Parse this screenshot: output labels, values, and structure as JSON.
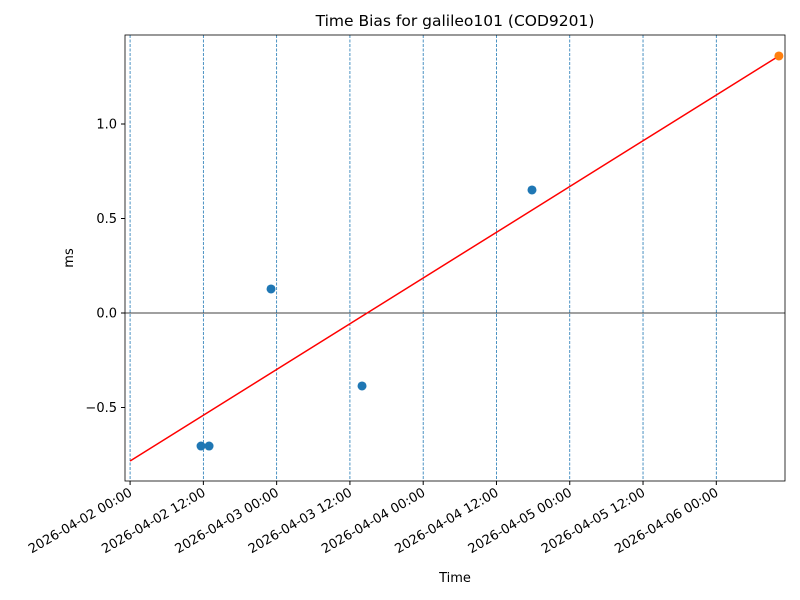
{
  "chart_data": {
    "type": "scatter",
    "title": "Time Bias for galileo101 (COD9201)",
    "x_label": "Time",
    "y_label": "ms",
    "xlim": [
      "2026-04-01 23:10",
      "2026-04-06 11:15"
    ],
    "xticks": [
      "2026-04-02 00:00",
      "2026-04-02 12:00",
      "2026-04-03 00:00",
      "2026-04-03 12:00",
      "2026-04-04 00:00",
      "2026-04-04 12:00",
      "2026-04-05 00:00",
      "2026-04-05 12:00",
      "2026-04-06 00:00"
    ],
    "ylim": [
      -0.889,
      1.471
    ],
    "yticks": [
      {
        "value": -0.5,
        "label": "−0.5"
      },
      {
        "value": 0,
        "label": "0.0"
      },
      0.5,
      {
        "value": 1,
        "label": "1.0"
      }
    ],
    "vertical_tick_lines": true,
    "vertical_line_color": "#1f77b4",
    "hline": {
      "value": 0,
      "color": "#000000"
    },
    "series": [
      {
        "type": "scatter",
        "color": "#1f77b4",
        "x": [
          "2026-04-02 11:37",
          "2026-04-02 12:56",
          "2026-04-02 23:05",
          "2026-04-03 13:59",
          "2026-04-04 17:49"
        ],
        "values": [
          -0.704,
          -0.704,
          0.127,
          -0.386,
          0.651
        ]
      },
      {
        "type": "line",
        "color": "#ff0000",
        "x": [
          "2026-04-02 00:00",
          "2026-04-06 10:15"
        ],
        "values": [
          -0.783,
          1.36
        ]
      },
      {
        "type": "scatter",
        "color": "#ff7f0e",
        "x": [
          "2026-04-06 10:15"
        ],
        "values": [
          1.36
        ]
      }
    ]
  }
}
